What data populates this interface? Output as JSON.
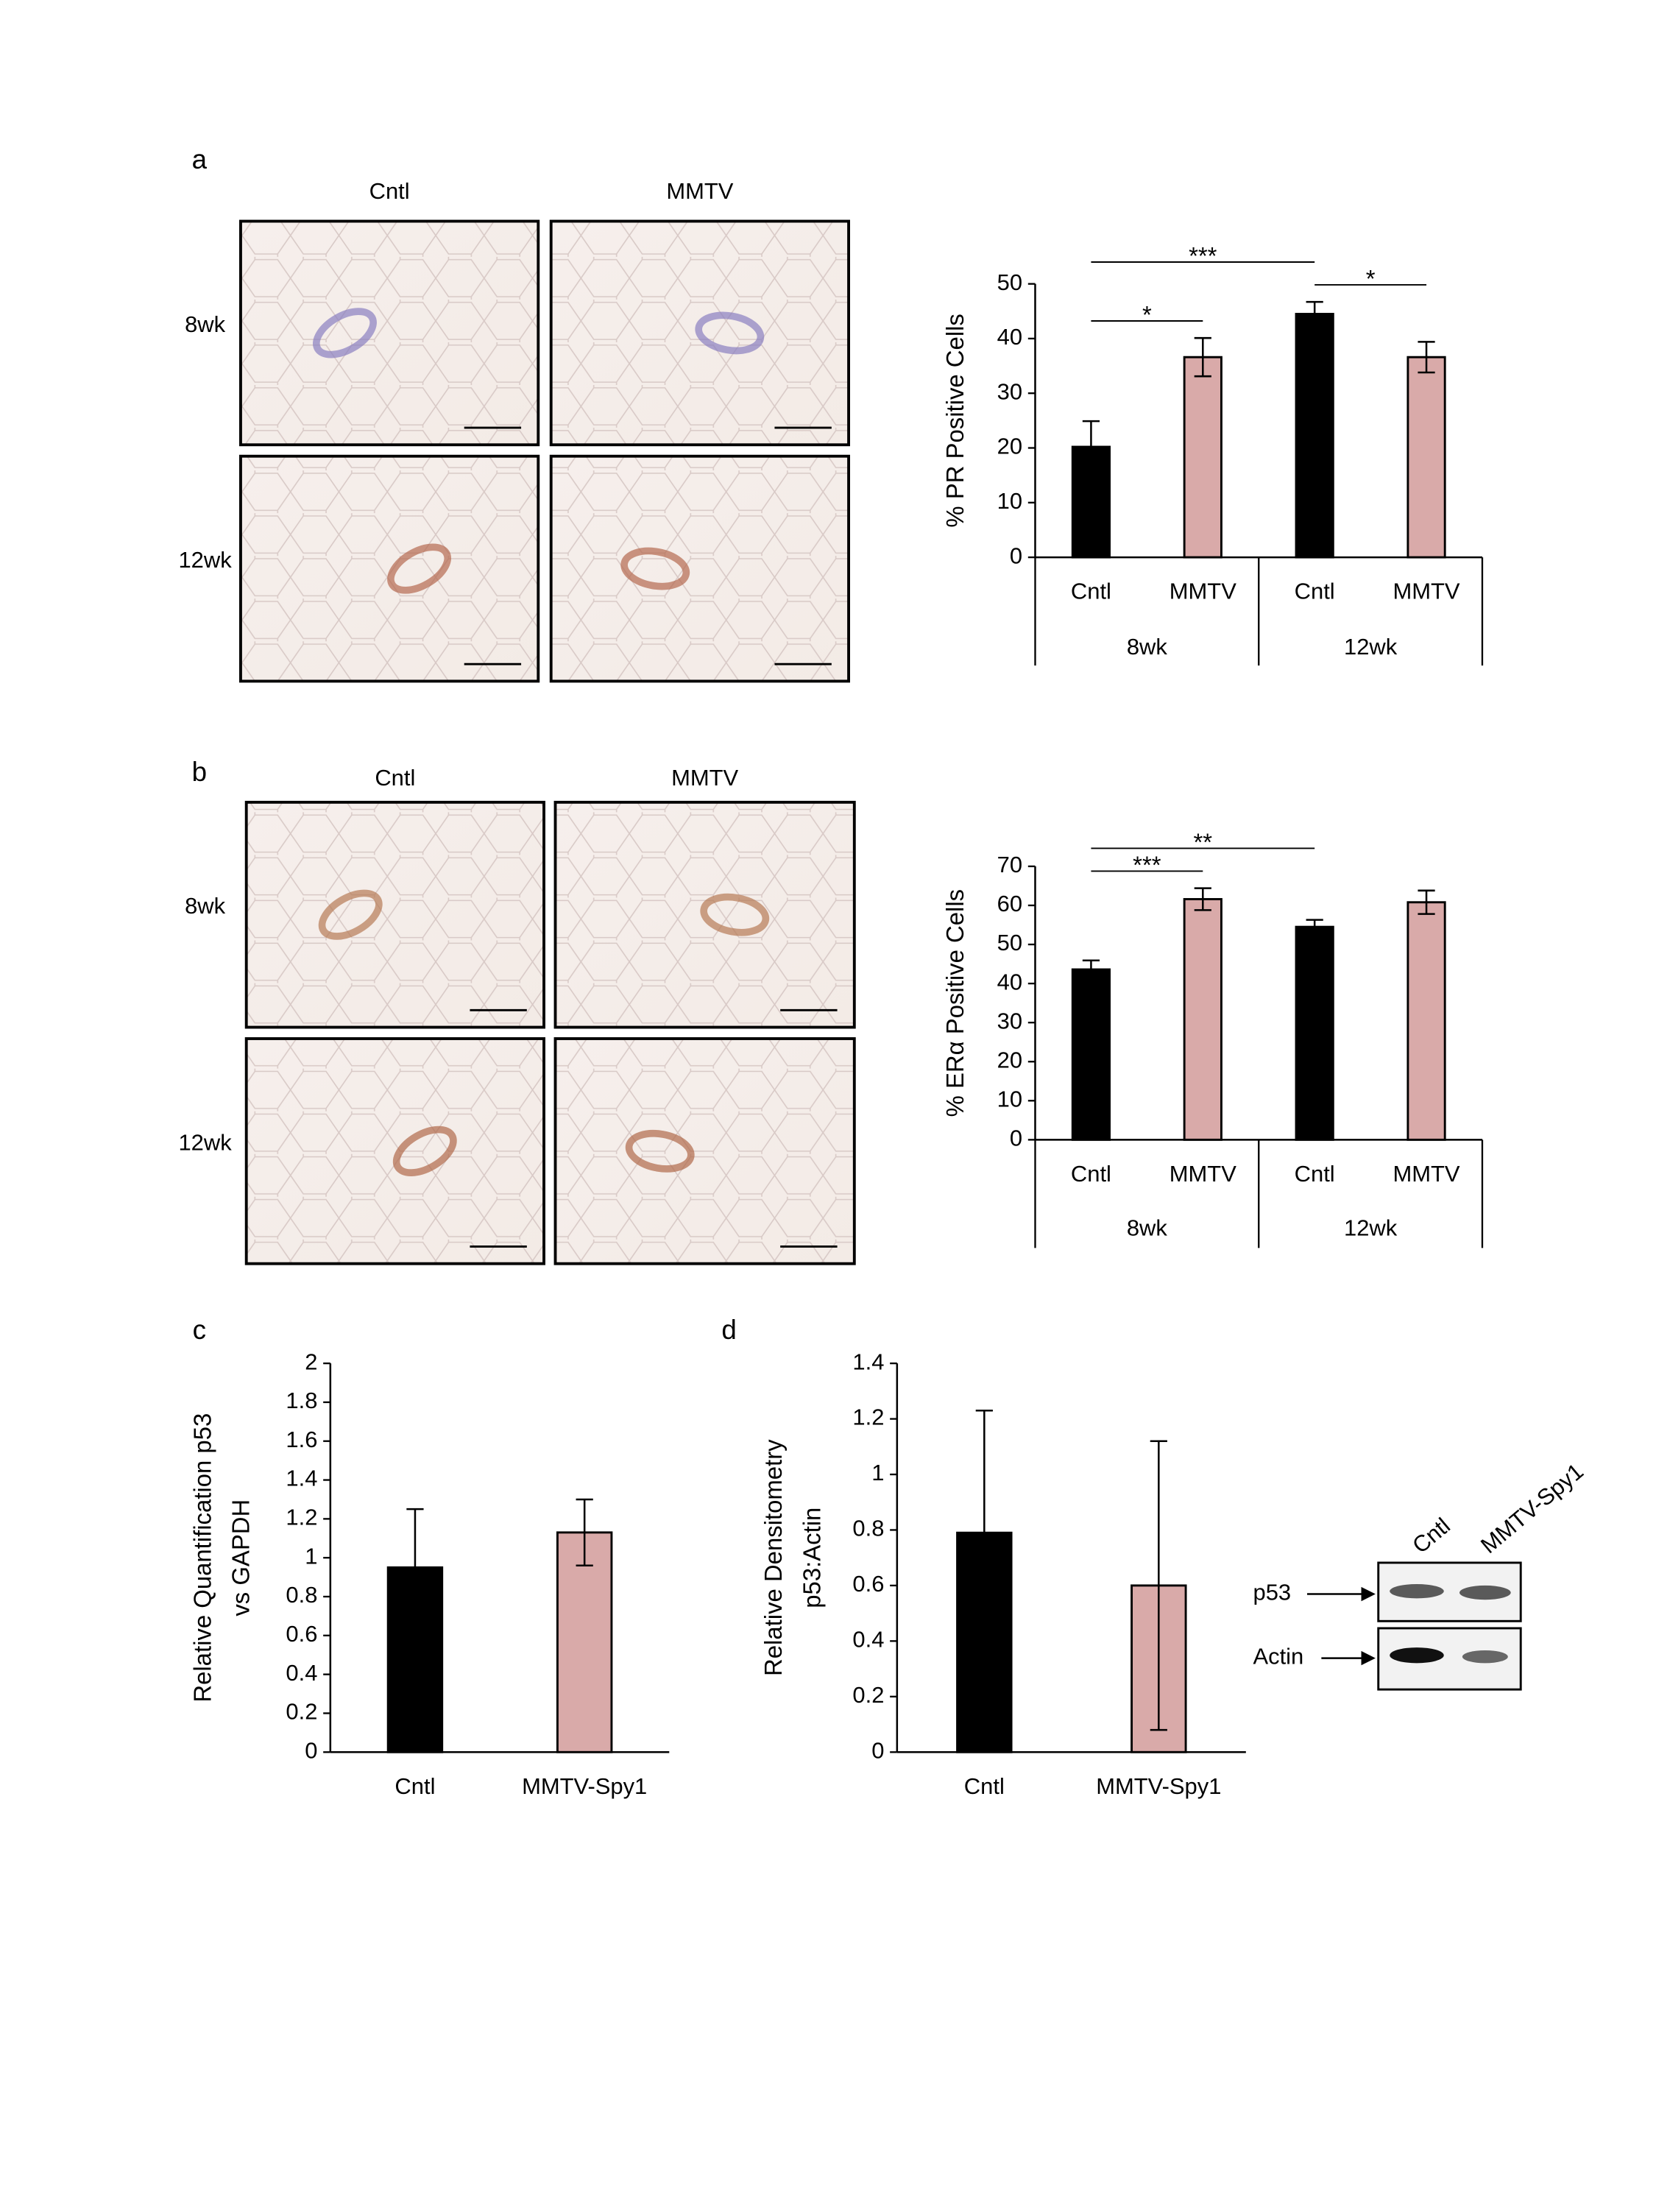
{
  "panel_labels": [
    "a",
    "b",
    "c",
    "d"
  ],
  "micrographs": [
    {
      "columns": [
        "Cntl",
        "MMTV"
      ],
      "rows": [
        "8wk",
        "12wk"
      ]
    },
    {
      "columns": [
        "Cntl",
        "MMTV"
      ],
      "rows": [
        "8wk",
        "12wk"
      ]
    }
  ],
  "blot": {
    "lanes": [
      "Cntl",
      "MMTV-Spy1"
    ],
    "bands": [
      "p53",
      "Actin"
    ]
  },
  "chart_data": [
    {
      "type": "bar",
      "ylabel": "% PR Positive Cells",
      "categories": [
        "Cntl",
        "MMTV",
        "Cntl",
        "MMTV"
      ],
      "groups": [
        "8wk",
        "12wk"
      ],
      "values": [
        20.2,
        36.6,
        44.5,
        36.6
      ],
      "errors": [
        4.7,
        3.5,
        2.2,
        2.8
      ],
      "colors": [
        "#000000",
        "#d9aaa9",
        "#000000",
        "#d9aaa9"
      ],
      "ylim": [
        0,
        50
      ],
      "yticks": [
        0,
        10,
        20,
        30,
        40,
        50
      ],
      "annotations": [
        {
          "label": "*",
          "bars": [
            0,
            1
          ]
        },
        {
          "label": "***",
          "bars": [
            0,
            2
          ]
        },
        {
          "label": "*",
          "bars": [
            2,
            3
          ]
        }
      ]
    },
    {
      "type": "bar",
      "ylabel": "% ERα Positive Cells",
      "categories": [
        "Cntl",
        "MMTV",
        "Cntl",
        "MMTV"
      ],
      "groups": [
        "8wk",
        "12wk"
      ],
      "values": [
        43.6,
        61.6,
        54.5,
        60.8
      ],
      "errors": [
        2.3,
        2.8,
        1.8,
        3.0
      ],
      "colors": [
        "#000000",
        "#d9aaa9",
        "#000000",
        "#d9aaa9"
      ],
      "ylim": [
        0,
        70
      ],
      "yticks": [
        0,
        10,
        20,
        30,
        40,
        50,
        60,
        70
      ],
      "annotations": [
        {
          "label": "***",
          "bars": [
            0,
            1
          ]
        },
        {
          "label": "**",
          "bars": [
            0,
            2
          ]
        }
      ]
    },
    {
      "type": "bar",
      "ylabel": [
        "Relative Quantification p53",
        "vs GAPDH"
      ],
      "categories": [
        "Cntl",
        "MMTV-Spy1"
      ],
      "values": [
        0.95,
        1.13
      ],
      "errors": [
        0.3,
        0.17
      ],
      "colors": [
        "#000000",
        "#d9aaa9"
      ],
      "ylim": [
        0,
        2
      ],
      "yticks": [
        0,
        0.2,
        0.4,
        0.6,
        0.8,
        1,
        1.2,
        1.4,
        1.6,
        1.8,
        2
      ]
    },
    {
      "type": "bar",
      "ylabel": [
        "Relative Densitometry",
        "p53:Actin"
      ],
      "categories": [
        "Cntl",
        "MMTV-Spy1"
      ],
      "values": [
        0.79,
        0.6
      ],
      "errors": [
        0.44,
        0.52
      ],
      "colors": [
        "#000000",
        "#d9aaa9"
      ],
      "ylim": [
        0,
        1.4
      ],
      "yticks": [
        0,
        0.2,
        0.4,
        0.6,
        0.8,
        1,
        1.2,
        1.4
      ]
    }
  ]
}
